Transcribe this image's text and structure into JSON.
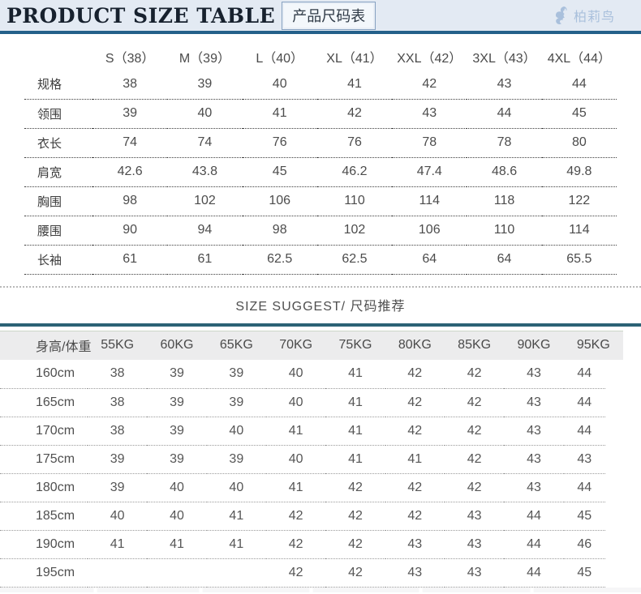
{
  "header": {
    "title": "PRODUCT SIZE TABLE",
    "subtitle": "产品尺码表",
    "brand": "柏莉鸟",
    "bar_background": "#e3eaf3",
    "bar_accent_color": "#24608a",
    "brand_color": "#a9c0dc"
  },
  "size_table": {
    "columns": [
      "S（38）",
      "M（39）",
      "L（40）",
      "XL（41）",
      "XXL（42）",
      "3XL（43）",
      "4XL（44）"
    ],
    "rows": [
      {
        "label": "规格",
        "values": [
          "38",
          "39",
          "40",
          "41",
          "42",
          "43",
          "44"
        ]
      },
      {
        "label": "领围",
        "values": [
          "39",
          "40",
          "41",
          "42",
          "43",
          "44",
          "45"
        ]
      },
      {
        "label": "衣长",
        "values": [
          "74",
          "74",
          "76",
          "76",
          "78",
          "78",
          "80"
        ]
      },
      {
        "label": "肩宽",
        "values": [
          "42.6",
          "43.8",
          "45",
          "46.2",
          "47.4",
          "48.6",
          "49.8"
        ]
      },
      {
        "label": "胸围",
        "values": [
          "98",
          "102",
          "106",
          "110",
          "114",
          "118",
          "122"
        ]
      },
      {
        "label": "腰围",
        "values": [
          "90",
          "94",
          "98",
          "102",
          "106",
          "110",
          "114"
        ]
      },
      {
        "label": "长袖",
        "values": [
          "61",
          "61",
          "62.5",
          "62.5",
          "64",
          "64",
          "65.5"
        ]
      }
    ]
  },
  "suggest_section": {
    "heading": "SIZE SUGGEST/ 尺码推荐",
    "accent_line_color": "#2c6275"
  },
  "suggest_table": {
    "corner_label": "身高/体重",
    "columns": [
      "55KG",
      "60KG",
      "65KG",
      "70KG",
      "75KG",
      "80KG",
      "85KG",
      "90KG",
      "95KG"
    ],
    "rows": [
      {
        "label": "160cm",
        "values": [
          "38",
          "39",
          "39",
          "40",
          "41",
          "42",
          "42",
          "43",
          "44"
        ]
      },
      {
        "label": "165cm",
        "values": [
          "38",
          "39",
          "39",
          "40",
          "41",
          "42",
          "42",
          "43",
          "44"
        ]
      },
      {
        "label": "170cm",
        "values": [
          "38",
          "39",
          "40",
          "41",
          "41",
          "42",
          "42",
          "43",
          "44"
        ]
      },
      {
        "label": "175cm",
        "values": [
          "39",
          "39",
          "39",
          "40",
          "41",
          "41",
          "42",
          "43",
          "43"
        ]
      },
      {
        "label": "180cm",
        "values": [
          "39",
          "40",
          "40",
          "41",
          "42",
          "42",
          "42",
          "43",
          "44"
        ]
      },
      {
        "label": "185cm",
        "values": [
          "40",
          "40",
          "41",
          "42",
          "42",
          "42",
          "43",
          "44",
          "45"
        ]
      },
      {
        "label": "190cm",
        "values": [
          "41",
          "41",
          "41",
          "42",
          "42",
          "43",
          "43",
          "44",
          "46"
        ]
      },
      {
        "label": "195cm",
        "values": [
          "",
          "",
          "",
          "42",
          "42",
          "43",
          "43",
          "44",
          "45"
        ]
      }
    ]
  }
}
